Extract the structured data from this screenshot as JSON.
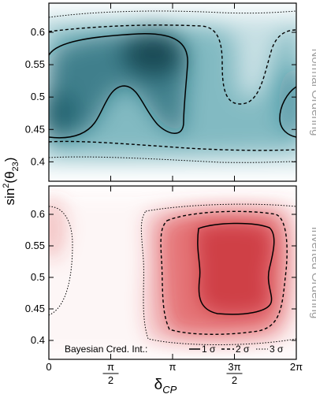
{
  "chart_data": [
    {
      "type": "heatmap",
      "panel_label": "Normal Ordering",
      "color": "#0f7284",
      "xlim": [
        0,
        6.2832
      ],
      "ylim": [
        0.37,
        0.645
      ],
      "grid": false,
      "peaks": [
        {
          "x": 2.0,
          "y": 0.565,
          "amp": 1.0
        },
        {
          "x": 0.1,
          "y": 0.47,
          "amp": 0.85
        },
        {
          "x": 1.2,
          "y": 0.55,
          "amp": 0.8
        },
        {
          "x": 6.2,
          "y": 0.5,
          "amp": 0.45
        }
      ]
    },
    {
      "type": "heatmap",
      "panel_label": "Inverted Ordering",
      "color": "#d9363a",
      "xlim": [
        0,
        6.2832
      ],
      "ylim": [
        0.37,
        0.645
      ],
      "grid": false,
      "peaks": [
        {
          "x": 4.7,
          "y": 0.56,
          "amp": 1.0
        },
        {
          "x": 4.6,
          "y": 0.47,
          "amp": 0.9
        },
        {
          "x": 0.05,
          "y": 0.57,
          "amp": 0.25
        }
      ]
    }
  ],
  "axes": {
    "ylabel_main": "sin",
    "ylabel_sup": "2",
    "ylabel_rest": "(θ",
    "ylabel_sub": "23",
    "ylabel_end": ")",
    "xlabel_main": "δ",
    "xlabel_sub": "CP",
    "yticks": [
      {
        "value": 0.4,
        "label": "0.4"
      },
      {
        "value": 0.45,
        "label": "0.45"
      },
      {
        "value": 0.5,
        "label": "0.5"
      },
      {
        "value": 0.55,
        "label": "0.55"
      },
      {
        "value": 0.6,
        "label": "0.6"
      }
    ],
    "xticks": [
      {
        "value": 0,
        "label": "0"
      },
      {
        "value": 1.5708,
        "label": "π/2"
      },
      {
        "value": 3.1416,
        "label": "π"
      },
      {
        "value": 4.7124,
        "label": "3π/2"
      },
      {
        "value": 6.2832,
        "label": "2π"
      }
    ]
  },
  "legend": {
    "title": "Bayesian Cred. Int.:",
    "items": [
      {
        "style": "solid",
        "label": "1 σ"
      },
      {
        "style": "dashed",
        "label": "2 σ"
      },
      {
        "style": "dotted",
        "label": "3 σ"
      }
    ]
  }
}
